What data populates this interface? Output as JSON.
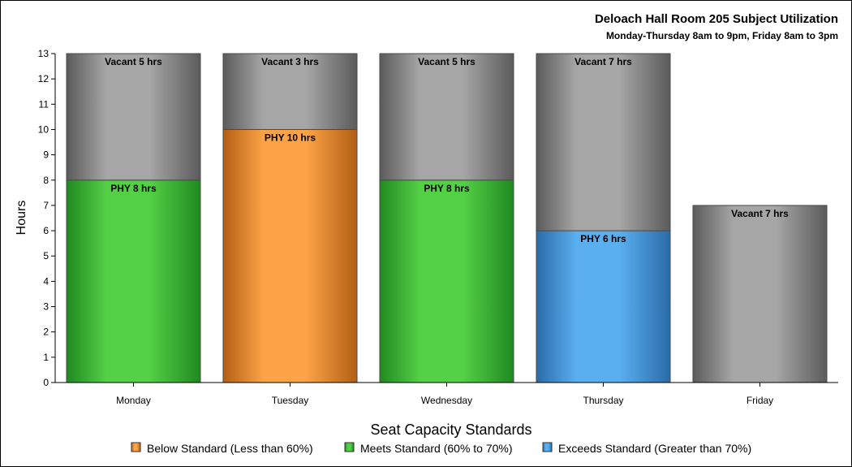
{
  "chart_data": {
    "type": "bar",
    "stacked": true,
    "title": "Deloach Hall Room 205 Subject Utilization",
    "subtitle": "Monday-Thursday 8am to 9pm, Friday 8am to 3pm",
    "ylabel": "Hours",
    "xlabel": "",
    "ylim": [
      0,
      13
    ],
    "yticks": [
      0,
      1,
      2,
      3,
      4,
      5,
      6,
      7,
      8,
      9,
      10,
      11,
      12,
      13
    ],
    "categories": [
      "Monday",
      "Tuesday",
      "Wednesday",
      "Thursday",
      "Friday"
    ],
    "segments": [
      [
        {
          "subject": "PHY",
          "value": 8,
          "label": "PHY 8 hrs",
          "standard": "meets"
        },
        {
          "subject": "Vacant",
          "value": 5,
          "label": "Vacant 5 hrs",
          "standard": "vacant"
        }
      ],
      [
        {
          "subject": "PHY",
          "value": 10,
          "label": "PHY 10 hrs",
          "standard": "below"
        },
        {
          "subject": "Vacant",
          "value": 3,
          "label": "Vacant 3 hrs",
          "standard": "vacant"
        }
      ],
      [
        {
          "subject": "PHY",
          "value": 8,
          "label": "PHY 8 hrs",
          "standard": "meets"
        },
        {
          "subject": "Vacant",
          "value": 5,
          "label": "Vacant 5 hrs",
          "standard": "vacant"
        }
      ],
      [
        {
          "subject": "PHY",
          "value": 6,
          "label": "PHY 6 hrs",
          "standard": "exceeds"
        },
        {
          "subject": "Vacant",
          "value": 7,
          "label": "Vacant 7 hrs",
          "standard": "vacant"
        }
      ],
      [
        {
          "subject": "Vacant",
          "value": 7,
          "label": "Vacant 7 hrs",
          "standard": "vacant"
        }
      ]
    ],
    "legend": {
      "title": "Seat Capacity Standards",
      "placement": "bottom-center",
      "items": [
        {
          "key": "below",
          "label": "Below Standard (Less than 60%)"
        },
        {
          "key": "meets",
          "label": "Meets Standard (60% to 70%)"
        },
        {
          "key": "exceeds",
          "label": "Exceeds Standard (Greater than 70%)"
        }
      ]
    },
    "colors": {
      "below": {
        "dark": "#b35f14",
        "light": "#fba346"
      },
      "meets": {
        "dark": "#1f8a1f",
        "light": "#54d046"
      },
      "exceeds": {
        "dark": "#2a6ba8",
        "light": "#5aaff0"
      },
      "vacant": {
        "dark": "#5b5b5b",
        "light": "#a6a6a6"
      }
    },
    "grid": false
  }
}
